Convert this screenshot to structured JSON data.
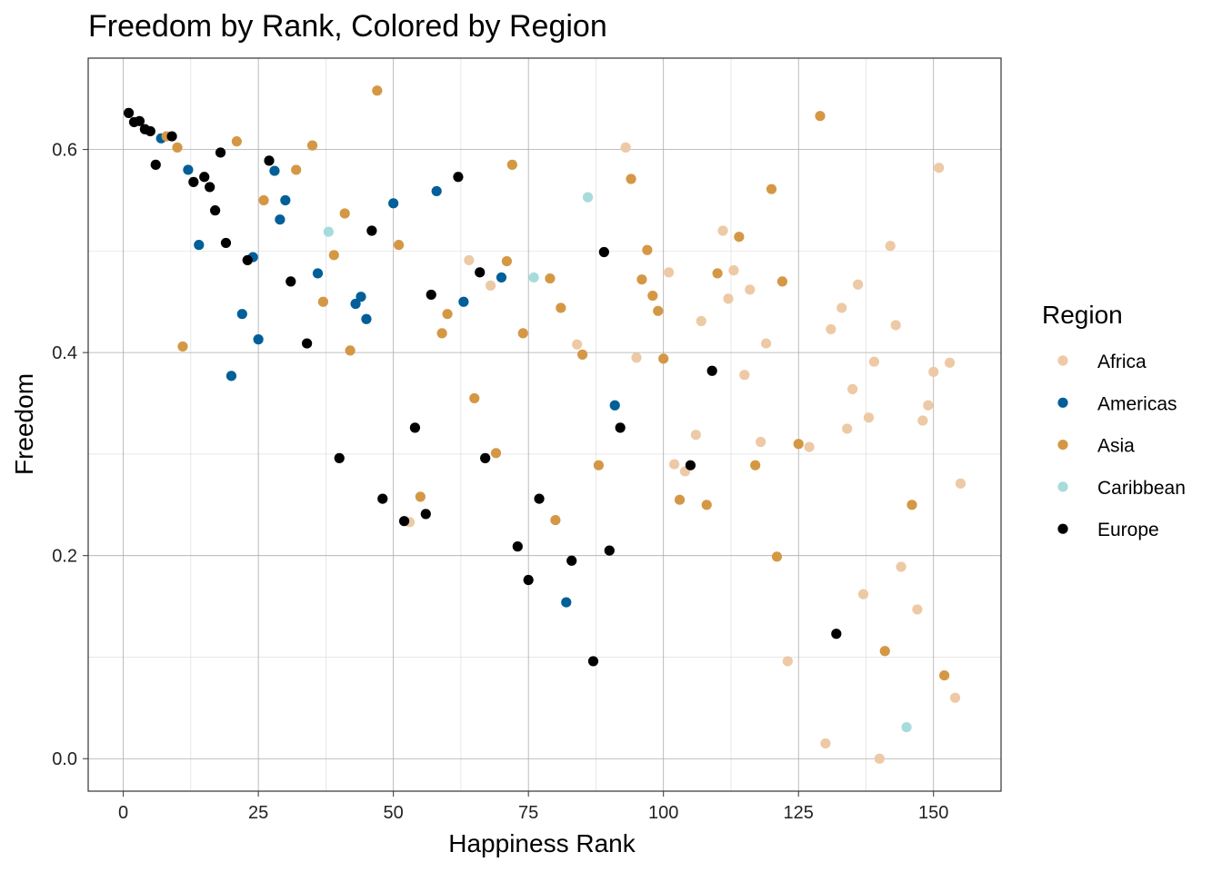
{
  "chart_data": {
    "type": "scatter",
    "title": "Freedom by Rank, Colored by Region",
    "xlabel": "Happiness Rank",
    "ylabel": "Freedom",
    "xlim": [
      -6.5,
      162.5
    ],
    "ylim": [
      -0.032,
      0.69
    ],
    "xticks": [
      0,
      25,
      50,
      75,
      100,
      125,
      150
    ],
    "xtick_labels": [
      "0",
      "25",
      "50",
      "75",
      "100",
      "125",
      "150"
    ],
    "yticks": [
      0.0,
      0.2,
      0.4,
      0.6
    ],
    "ytick_labels": [
      "0.0",
      "0.2",
      "0.4",
      "0.6"
    ],
    "grid": true,
    "legend": {
      "title": "Region",
      "placement": "right"
    },
    "series": [
      {
        "name": "Africa",
        "color": "#EDC9A6",
        "points": [
          [
            53,
            0.233
          ],
          [
            64,
            0.491
          ],
          [
            68,
            0.466
          ],
          [
            84,
            0.408
          ],
          [
            93,
            0.602
          ],
          [
            95,
            0.395
          ],
          [
            101,
            0.479
          ],
          [
            102,
            0.29
          ],
          [
            104,
            0.283
          ],
          [
            106,
            0.319
          ],
          [
            107,
            0.431
          ],
          [
            111,
            0.52
          ],
          [
            112,
            0.453
          ],
          [
            113,
            0.481
          ],
          [
            115,
            0.378
          ],
          [
            116,
            0.462
          ],
          [
            118,
            0.312
          ],
          [
            119,
            0.409
          ],
          [
            123,
            0.096
          ],
          [
            127,
            0.307
          ],
          [
            130,
            0.015
          ],
          [
            131,
            0.423
          ],
          [
            133,
            0.444
          ],
          [
            134,
            0.325
          ],
          [
            135,
            0.364
          ],
          [
            136,
            0.467
          ],
          [
            137,
            0.162
          ],
          [
            138,
            0.336
          ],
          [
            139,
            0.391
          ],
          [
            140,
            0.0
          ],
          [
            142,
            0.505
          ],
          [
            143,
            0.427
          ],
          [
            144,
            0.189
          ],
          [
            147,
            0.147
          ],
          [
            148,
            0.333
          ],
          [
            149,
            0.348
          ],
          [
            150,
            0.381
          ],
          [
            151,
            0.582
          ],
          [
            153,
            0.39
          ],
          [
            154,
            0.06
          ],
          [
            155,
            0.271
          ]
        ]
      },
      {
        "name": "Americas",
        "color": "#005F99",
        "points": [
          [
            7,
            0.611
          ],
          [
            12,
            0.58
          ],
          [
            14,
            0.506
          ],
          [
            20,
            0.377
          ],
          [
            22,
            0.438
          ],
          [
            24,
            0.494
          ],
          [
            25,
            0.413
          ],
          [
            28,
            0.579
          ],
          [
            29,
            0.531
          ],
          [
            30,
            0.55
          ],
          [
            36,
            0.478
          ],
          [
            43,
            0.448
          ],
          [
            44,
            0.455
          ],
          [
            45,
            0.433
          ],
          [
            50,
            0.547
          ],
          [
            58,
            0.559
          ],
          [
            63,
            0.45
          ],
          [
            70,
            0.474
          ],
          [
            82,
            0.154
          ],
          [
            91,
            0.348
          ]
        ]
      },
      {
        "name": "Asia",
        "color": "#D49845",
        "points": [
          [
            8,
            0.613
          ],
          [
            10,
            0.602
          ],
          [
            11,
            0.406
          ],
          [
            21,
            0.608
          ],
          [
            26,
            0.55
          ],
          [
            32,
            0.58
          ],
          [
            35,
            0.604
          ],
          [
            37,
            0.45
          ],
          [
            39,
            0.496
          ],
          [
            41,
            0.537
          ],
          [
            42,
            0.402
          ],
          [
            47,
            0.658
          ],
          [
            51,
            0.506
          ],
          [
            55,
            0.258
          ],
          [
            59,
            0.419
          ],
          [
            60,
            0.438
          ],
          [
            65,
            0.355
          ],
          [
            69,
            0.301
          ],
          [
            71,
            0.49
          ],
          [
            72,
            0.585
          ],
          [
            74,
            0.419
          ],
          [
            79,
            0.473
          ],
          [
            80,
            0.235
          ],
          [
            81,
            0.444
          ],
          [
            85,
            0.398
          ],
          [
            88,
            0.289
          ],
          [
            94,
            0.571
          ],
          [
            96,
            0.472
          ],
          [
            97,
            0.501
          ],
          [
            98,
            0.456
          ],
          [
            99,
            0.441
          ],
          [
            100,
            0.394
          ],
          [
            103,
            0.255
          ],
          [
            108,
            0.25
          ],
          [
            110,
            0.478
          ],
          [
            114,
            0.514
          ],
          [
            117,
            0.289
          ],
          [
            120,
            0.561
          ],
          [
            121,
            0.199
          ],
          [
            122,
            0.47
          ],
          [
            125,
            0.31
          ],
          [
            129,
            0.633
          ],
          [
            141,
            0.106
          ],
          [
            146,
            0.25
          ],
          [
            152,
            0.082
          ]
        ]
      },
      {
        "name": "Caribbean",
        "color": "#A8DBDC",
        "points": [
          [
            38,
            0.519
          ],
          [
            76,
            0.474
          ],
          [
            86,
            0.553
          ],
          [
            145,
            0.031
          ]
        ]
      },
      {
        "name": "Europe",
        "color": "#000000",
        "points": [
          [
            1,
            0.636
          ],
          [
            2,
            0.627
          ],
          [
            3,
            0.628
          ],
          [
            4,
            0.62
          ],
          [
            5,
            0.618
          ],
          [
            6,
            0.585
          ],
          [
            9,
            0.613
          ],
          [
            13,
            0.568
          ],
          [
            15,
            0.573
          ],
          [
            16,
            0.563
          ],
          [
            17,
            0.54
          ],
          [
            18,
            0.597
          ],
          [
            19,
            0.508
          ],
          [
            23,
            0.491
          ],
          [
            27,
            0.589
          ],
          [
            31,
            0.47
          ],
          [
            34,
            0.409
          ],
          [
            40,
            0.296
          ],
          [
            46,
            0.52
          ],
          [
            48,
            0.256
          ],
          [
            52,
            0.234
          ],
          [
            54,
            0.326
          ],
          [
            56,
            0.241
          ],
          [
            57,
            0.457
          ],
          [
            62,
            0.573
          ],
          [
            66,
            0.479
          ],
          [
            67,
            0.296
          ],
          [
            73,
            0.209
          ],
          [
            75,
            0.176
          ],
          [
            77,
            0.256
          ],
          [
            83,
            0.195
          ],
          [
            87,
            0.096
          ],
          [
            89,
            0.499
          ],
          [
            90,
            0.205
          ],
          [
            92,
            0.326
          ],
          [
            105,
            0.289
          ],
          [
            109,
            0.382
          ],
          [
            132,
            0.123
          ]
        ]
      }
    ]
  }
}
